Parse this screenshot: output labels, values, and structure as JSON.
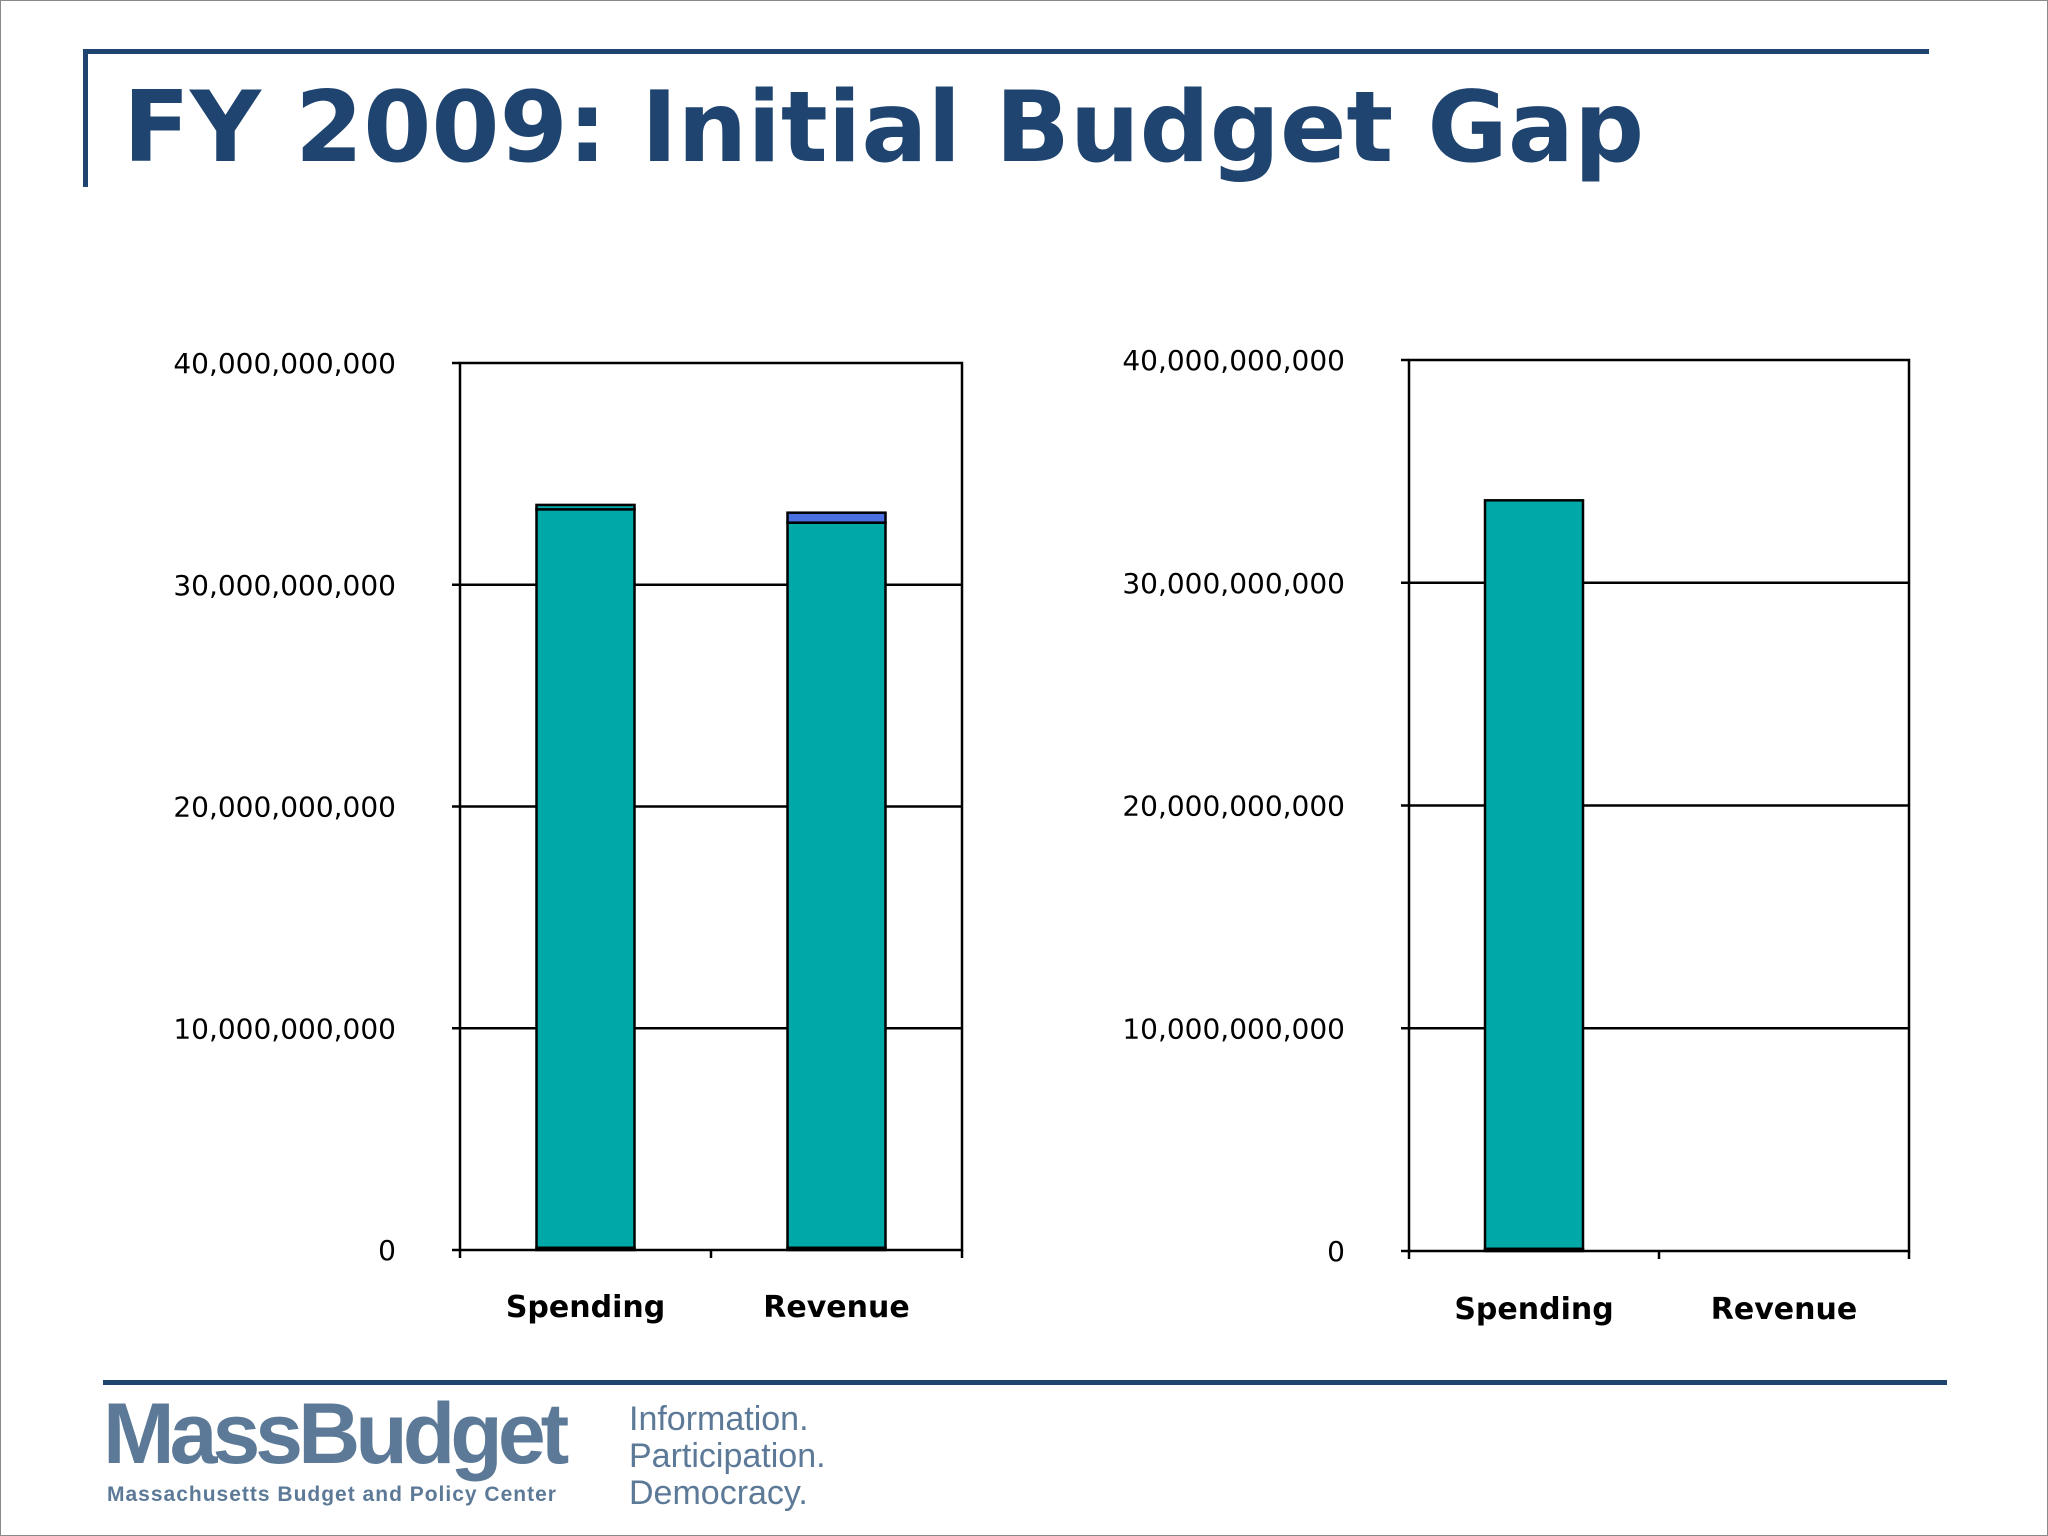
{
  "slide": {
    "title": "FY 2009: Initial Budget Gap",
    "logo": {
      "wordmark": "MassBudget",
      "subtitle": "Massachusetts Budget and Policy Center",
      "tagline": [
        "Information.",
        "Participation.",
        "Democracy."
      ]
    }
  },
  "colors": {
    "title": "#1f4470",
    "teal": "#00a8a8",
    "blue": "#4a6fe0",
    "logo": "#5c7a97"
  },
  "chart_data": [
    {
      "type": "bar",
      "stacked": true,
      "categories": [
        "Spending",
        "Revenue"
      ],
      "ylim": [
        0,
        40000000000
      ],
      "yticks": [
        {
          "value": 0,
          "label": "0"
        },
        {
          "value": 10000000000,
          "label": "10,000,000,000"
        },
        {
          "value": 20000000000,
          "label": "20,000,000,000"
        },
        {
          "value": 30000000000,
          "label": "30,000,000,000"
        },
        {
          "value": 40000000000,
          "label": "40,000,000,000"
        }
      ],
      "grid": true,
      "stacks": [
        {
          "category": "Spending",
          "segments": [
            {
              "value": 100000000,
              "color": "#00a8a8"
            },
            {
              "value": 33300000000,
              "color": "#00a8a8"
            },
            {
              "value": 200000000,
              "color": "#00a8a8"
            }
          ]
        },
        {
          "category": "Revenue",
          "segments": [
            {
              "value": 100000000,
              "color": "#00a8a8"
            },
            {
              "value": 32700000000,
              "color": "#00a8a8"
            },
            {
              "value": 450000000,
              "color": "#4a6fe0"
            }
          ]
        }
      ]
    },
    {
      "type": "bar",
      "stacked": true,
      "categories": [
        "Spending",
        "Revenue"
      ],
      "ylim": [
        0,
        40000000000
      ],
      "yticks": [
        {
          "value": 0,
          "label": "0"
        },
        {
          "value": 10000000000,
          "label": "10,000,000,000"
        },
        {
          "value": 20000000000,
          "label": "20,000,000,000"
        },
        {
          "value": 30000000000,
          "label": "30,000,000,000"
        },
        {
          "value": 40000000000,
          "label": "40,000,000,000"
        }
      ],
      "grid": true,
      "stacks": [
        {
          "category": "Spending",
          "segments": [
            {
              "value": 100000000,
              "color": "#00a8a8"
            },
            {
              "value": 33600000000,
              "color": "#00a8a8"
            }
          ]
        },
        {
          "category": "Revenue",
          "segments": []
        }
      ]
    }
  ]
}
